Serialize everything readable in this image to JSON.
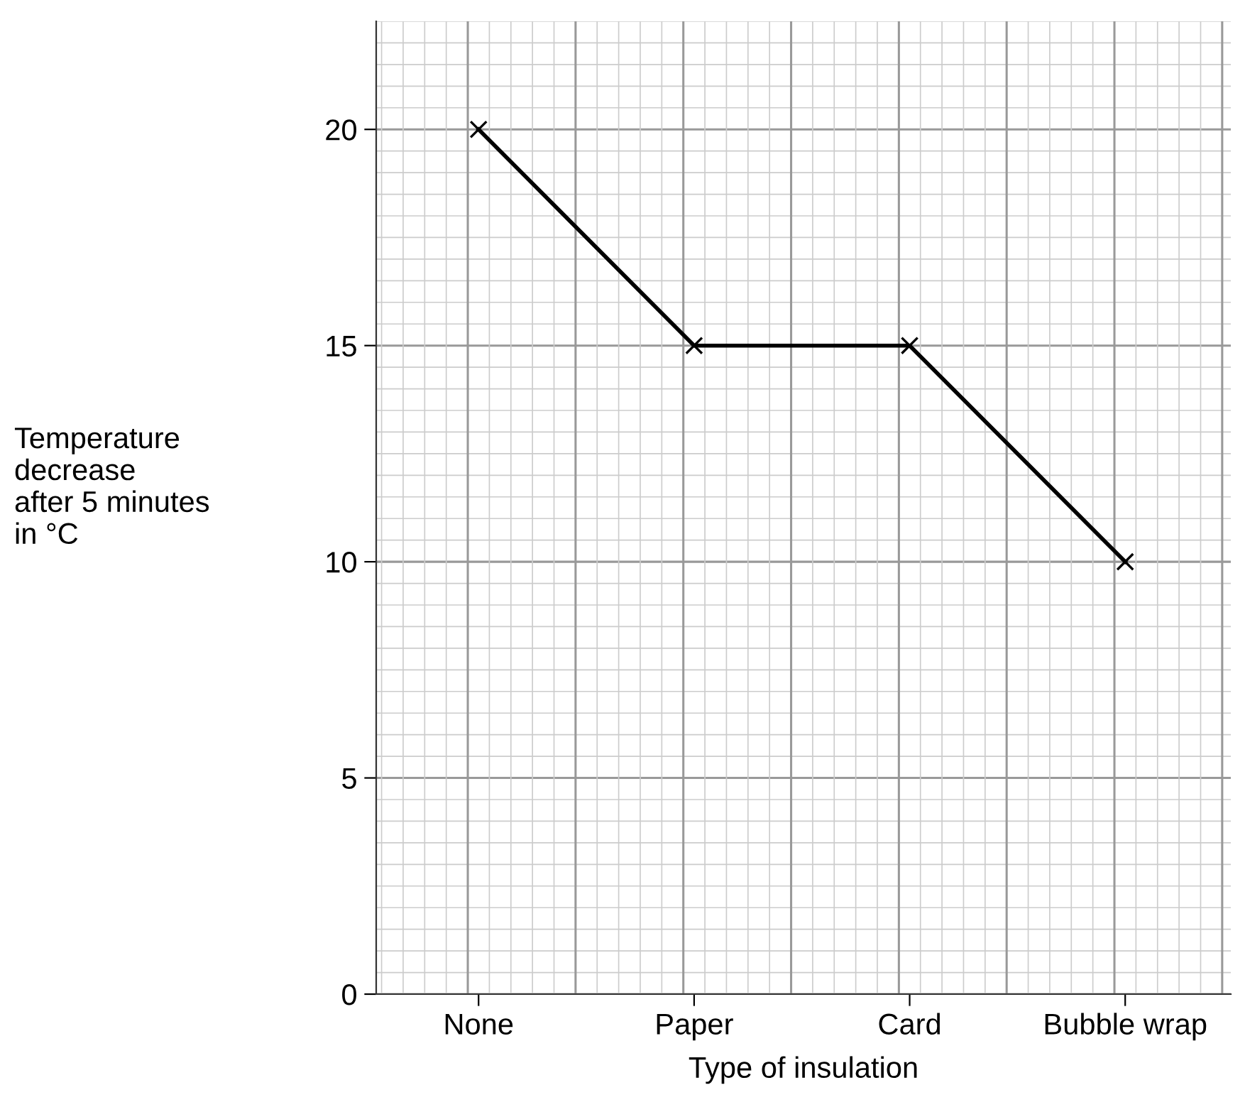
{
  "chart_data": {
    "type": "line",
    "xlabel": "Type of insulation",
    "ylabel": "Temperature\ndecrease\nafter 5 minutes\nin °C",
    "categories": [
      "None",
      "Paper",
      "Card",
      "Bubble wrap"
    ],
    "series": [
      {
        "color": "#000000",
        "values": [
          20,
          15,
          15,
          10
        ]
      }
    ],
    "ylim": [
      0,
      22.5
    ],
    "yticks": [
      0,
      5,
      10,
      15,
      20
    ],
    "grid": true,
    "marker": "cross",
    "line_style": "solid"
  }
}
